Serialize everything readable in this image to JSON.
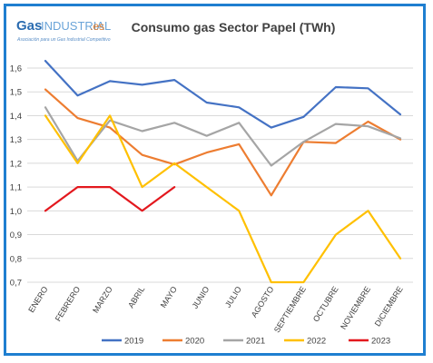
{
  "logo": {
    "brand_gas": "Gas",
    "brand_industrial": "INDUSTRIAL",
    "brand_es": ".es",
    "tagline": "Asociación para un Gas Industrial Competitivo"
  },
  "chart_data": {
    "type": "line",
    "title": "Consumo gas Sector Papel (TWh)",
    "xlabel": "",
    "ylabel": "",
    "categories": [
      "ENERO",
      "FEBRERO",
      "MARZO",
      "ABRIL",
      "MAYO",
      "JUNIO",
      "JULIO",
      "AGOSTO",
      "SEPTIEMBRE",
      "OCTUBRE",
      "NOVIEMBRE",
      "DICIEMBRE"
    ],
    "y_ticks": [
      "0,7",
      "0,8",
      "0,9",
      "1,0",
      "1,1",
      "1,2",
      "1,3",
      "1,4",
      "1,5",
      "1,6"
    ],
    "ylim": [
      0.7,
      1.65
    ],
    "grid": "horizontal",
    "legend_position": "bottom",
    "series": [
      {
        "name": "2019",
        "color": "#4472c4",
        "values": [
          1.63,
          1.485,
          1.545,
          1.53,
          1.55,
          1.455,
          1.435,
          1.35,
          1.395,
          1.52,
          1.515,
          1.405
        ]
      },
      {
        "name": "2020",
        "color": "#ed7d31",
        "values": [
          1.51,
          1.39,
          1.35,
          1.235,
          1.195,
          1.245,
          1.28,
          1.065,
          1.29,
          1.285,
          1.375,
          1.3
        ]
      },
      {
        "name": "2021",
        "color": "#a5a5a5",
        "values": [
          1.435,
          1.21,
          1.38,
          1.335,
          1.37,
          1.315,
          1.37,
          1.19,
          1.29,
          1.365,
          1.355,
          1.305
        ]
      },
      {
        "name": "2022",
        "color": "#ffc000",
        "values": [
          1.4,
          1.2,
          1.4,
          1.1,
          1.2,
          1.1,
          1.0,
          0.7,
          0.7,
          0.9,
          1.0,
          0.8
        ]
      },
      {
        "name": "2023",
        "color": "#e3181e",
        "values": [
          1.0,
          1.1,
          1.1,
          1.0,
          1.1,
          null,
          null,
          null,
          null,
          null,
          null,
          null
        ]
      }
    ]
  }
}
